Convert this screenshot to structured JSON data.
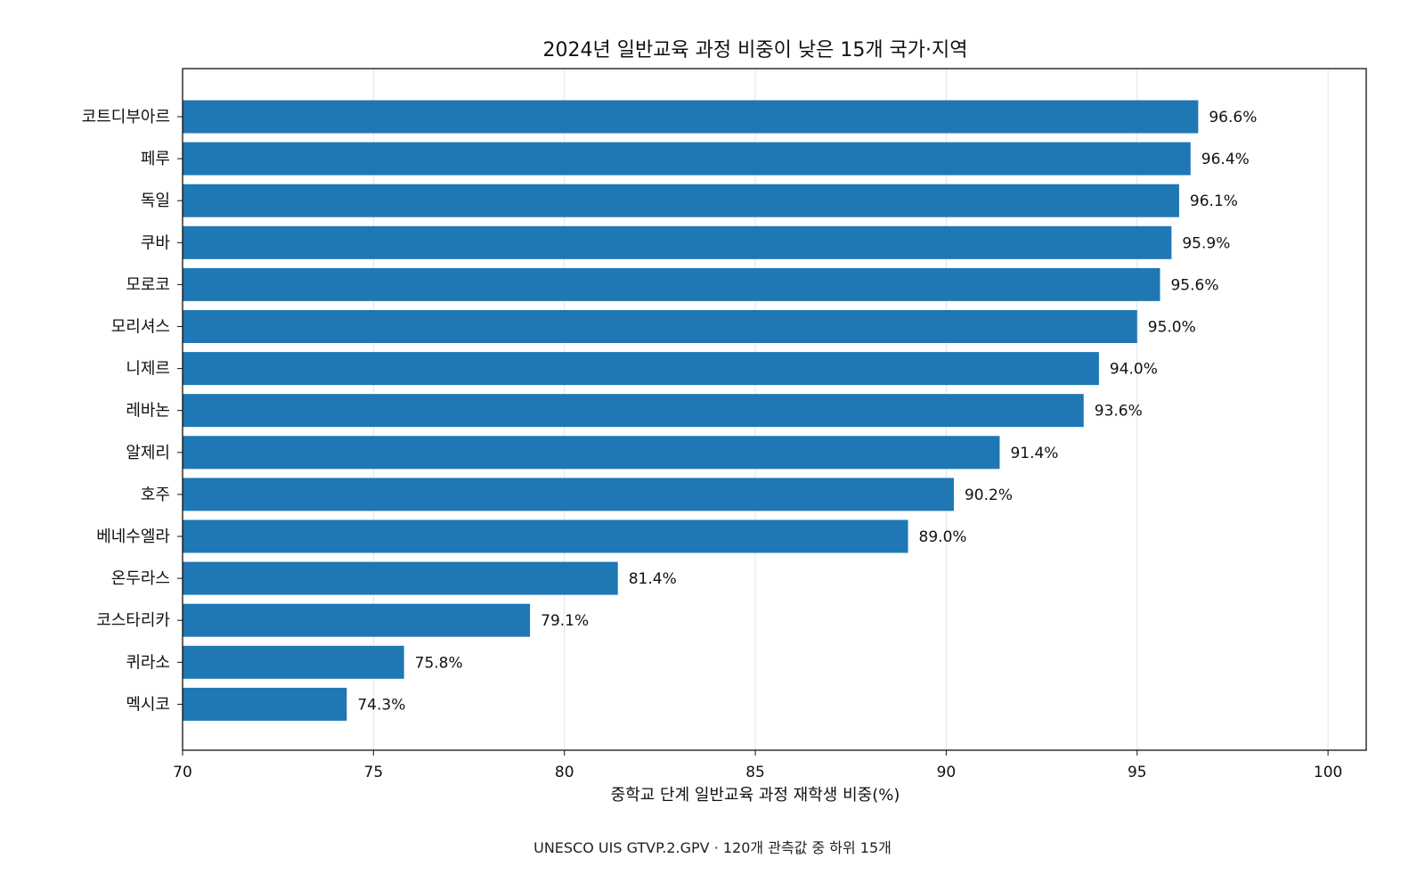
{
  "chart_data": {
    "type": "bar",
    "orientation": "horizontal",
    "title": "2024년 일반교육 과정 비중이 낮은 15개 국가·지역",
    "xlabel": "중학교 단계 일반교육 과정 재학생 비중(%)",
    "ylabel": "",
    "xlim": [
      70,
      101
    ],
    "xticks": [
      70,
      75,
      80,
      85,
      90,
      95,
      100
    ],
    "grid": "x",
    "categories": [
      "코트디부아르",
      "페루",
      "독일",
      "쿠바",
      "모로코",
      "모리셔스",
      "니제르",
      "레바논",
      "알제리",
      "호주",
      "베네수엘라",
      "온두라스",
      "코스타리카",
      "퀴라소",
      "멕시코"
    ],
    "values": [
      96.6,
      96.4,
      96.1,
      95.9,
      95.6,
      95.0,
      94.0,
      93.6,
      91.4,
      90.2,
      89.0,
      81.4,
      79.1,
      75.8,
      74.3
    ],
    "data_labels": [
      "96.6%",
      "96.4%",
      "96.1%",
      "95.9%",
      "95.6%",
      "95.0%",
      "94.0%",
      "93.6%",
      "91.4%",
      "90.2%",
      "89.0%",
      "81.4%",
      "79.1%",
      "75.8%",
      "74.3%"
    ],
    "bar_color": "#1f77b4",
    "source_note": "UNESCO UIS GTVP.2.GPV · 120개 관측값 중 하위 15개"
  }
}
